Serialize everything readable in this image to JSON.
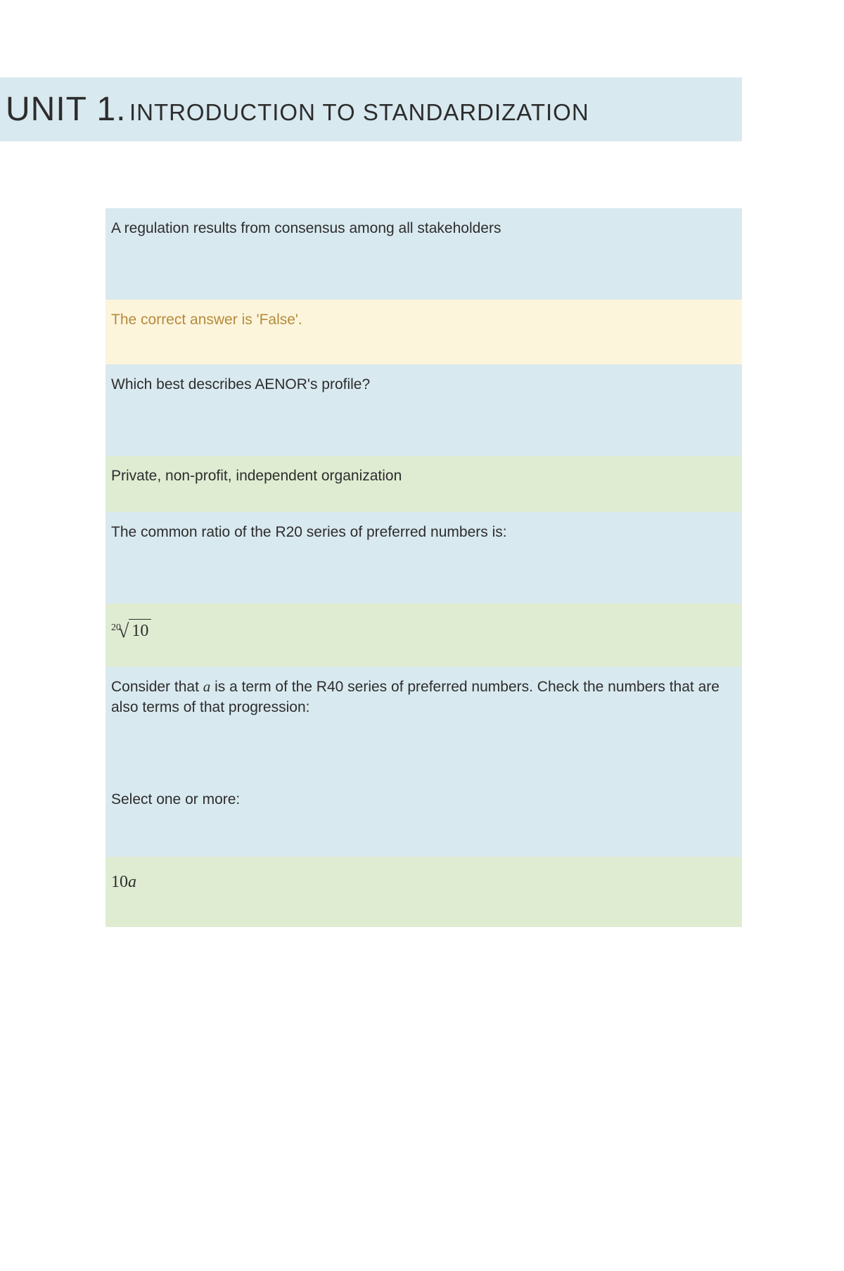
{
  "title": {
    "unit_big": "UNIT 1.",
    "subtitle": "INTRODUCTION TO STANDARDIZATION"
  },
  "colors": {
    "question_bg": "#d9e9f0",
    "answer_yellow_bg": "#fcf5dc",
    "answer_yellow_text": "#b58b3d",
    "answer_green_bg": "#dfecd2",
    "page_bg": "#ffffff",
    "text": "#2d2d2d"
  },
  "items": {
    "q1": "A regulation results from consensus among all stakeholders",
    "a1": "The correct answer is 'False'.",
    "q2": "Which best describes AENOR's profile?",
    "a2": "Private, non-profit, independent organization",
    "q3": "The common ratio of the R20 series of preferred numbers is:",
    "a3_index": "20",
    "a3_radicand": "10",
    "q4_pre": "Consider that ",
    "q4_var": "a",
    "q4_post": " is a term of the R40 series of preferred numbers. Check the numbers that are also terms of that progression:",
    "q4b": "Select one or more:",
    "a4_num": "10",
    "a4_var": "a"
  }
}
